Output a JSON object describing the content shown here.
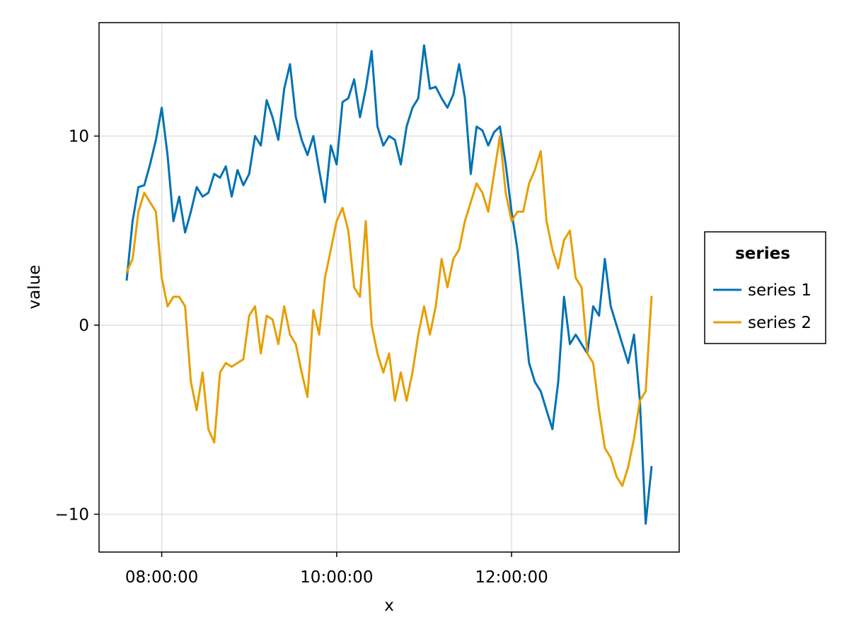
{
  "chart_data": {
    "type": "line",
    "xlabel": "x",
    "ylabel": "value",
    "x_axis_type": "time",
    "xlim": [
      "07:17:00",
      "13:55:00"
    ],
    "ylim": [
      -12,
      16
    ],
    "x_ticks": [
      "08:00:00",
      "10:00:00",
      "12:00:00"
    ],
    "y_ticks": [
      -10,
      0,
      10
    ],
    "y_tick_labels": [
      "−10",
      "0",
      "10"
    ],
    "grid": true,
    "legend": {
      "title": "series",
      "position": "right"
    },
    "x": [
      "07:36:00",
      "07:40:00",
      "07:44:00",
      "07:48:00",
      "07:52:00",
      "07:56:00",
      "08:00:00",
      "08:04:00",
      "08:08:00",
      "08:12:00",
      "08:16:00",
      "08:20:00",
      "08:24:00",
      "08:28:00",
      "08:32:00",
      "08:36:00",
      "08:40:00",
      "08:44:00",
      "08:48:00",
      "08:52:00",
      "08:56:00",
      "09:00:00",
      "09:04:00",
      "09:08:00",
      "09:12:00",
      "09:16:00",
      "09:20:00",
      "09:24:00",
      "09:28:00",
      "09:32:00",
      "09:36:00",
      "09:40:00",
      "09:44:00",
      "09:48:00",
      "09:52:00",
      "09:56:00",
      "10:00:00",
      "10:04:00",
      "10:08:00",
      "10:12:00",
      "10:16:00",
      "10:20:00",
      "10:24:00",
      "10:28:00",
      "10:32:00",
      "10:36:00",
      "10:40:00",
      "10:44:00",
      "10:48:00",
      "10:52:00",
      "10:56:00",
      "11:00:00",
      "11:04:00",
      "11:08:00",
      "11:12:00",
      "11:16:00",
      "11:20:00",
      "11:24:00",
      "11:28:00",
      "11:32:00",
      "11:36:00",
      "11:40:00",
      "11:44:00",
      "11:48:00",
      "11:52:00",
      "11:56:00",
      "12:00:00",
      "12:04:00",
      "12:08:00",
      "12:12:00",
      "12:16:00",
      "12:20:00",
      "12:24:00",
      "12:28:00",
      "12:32:00",
      "12:36:00",
      "12:40:00",
      "12:44:00",
      "12:48:00",
      "12:52:00",
      "12:56:00",
      "13:00:00",
      "13:04:00",
      "13:08:00",
      "13:12:00",
      "13:16:00",
      "13:20:00",
      "13:24:00",
      "13:28:00",
      "13:32:00",
      "13:36:00"
    ],
    "series": [
      {
        "name": "series 1",
        "color": "#0072B2",
        "values": [
          2.4,
          5.5,
          7.3,
          7.4,
          8.5,
          9.8,
          11.5,
          9.0,
          5.5,
          6.8,
          4.9,
          6.0,
          7.3,
          6.8,
          7.0,
          8.0,
          7.8,
          8.4,
          6.8,
          8.2,
          7.4,
          8.0,
          10.0,
          9.5,
          11.9,
          11.0,
          9.8,
          12.5,
          13.8,
          11.0,
          9.8,
          9.0,
          10.0,
          8.2,
          6.5,
          9.5,
          8.5,
          11.8,
          12.0,
          13.0,
          11.0,
          12.5,
          14.5,
          10.5,
          9.5,
          10.0,
          9.8,
          8.5,
          10.5,
          11.5,
          12.0,
          14.8,
          12.5,
          12.6,
          12.0,
          11.5,
          12.2,
          13.8,
          12.0,
          8.0,
          10.5,
          10.3,
          9.5,
          10.2,
          10.5,
          8.5,
          6.0,
          4.0,
          1.0,
          -2.0,
          -3.0,
          -3.5,
          -4.5,
          -5.5,
          -3.0,
          1.5,
          -1.0,
          -0.5,
          -1.0,
          -1.5,
          1.0,
          0.5,
          3.5,
          1.0,
          0.0,
          -1.0,
          -2.0,
          -0.5,
          -4.0,
          -10.5,
          -7.5
        ]
      },
      {
        "name": "series 2",
        "color": "#E69F00",
        "values": [
          2.8,
          3.5,
          6.0,
          7.0,
          6.5,
          6.0,
          2.5,
          1.0,
          1.5,
          1.5,
          1.0,
          -3.0,
          -4.5,
          -2.5,
          -5.5,
          -6.2,
          -2.5,
          -2.0,
          -2.2,
          -2.0,
          -1.8,
          0.5,
          1.0,
          -1.5,
          0.5,
          0.3,
          -1.0,
          1.0,
          -0.5,
          -1.0,
          -2.5,
          -3.8,
          0.8,
          -0.5,
          2.5,
          4.0,
          5.5,
          6.2,
          5.0,
          2.0,
          1.5,
          5.5,
          0.0,
          -1.5,
          -2.5,
          -1.5,
          -4.0,
          -2.5,
          -4.0,
          -2.5,
          -0.5,
          1.0,
          -0.5,
          1.0,
          3.5,
          2.0,
          3.5,
          4.0,
          5.5,
          6.5,
          7.5,
          7.0,
          6.0,
          8.0,
          10.0,
          7.0,
          5.5,
          6.0,
          6.0,
          7.5,
          8.2,
          9.2,
          5.5,
          4.0,
          3.0,
          4.5,
          5.0,
          2.5,
          2.0,
          -1.5,
          -2.0,
          -4.5,
          -6.5,
          -7.0,
          -8.0,
          -8.5,
          -7.5,
          -6.0,
          -4.0,
          -3.5,
          1.5
        ]
      }
    ]
  }
}
